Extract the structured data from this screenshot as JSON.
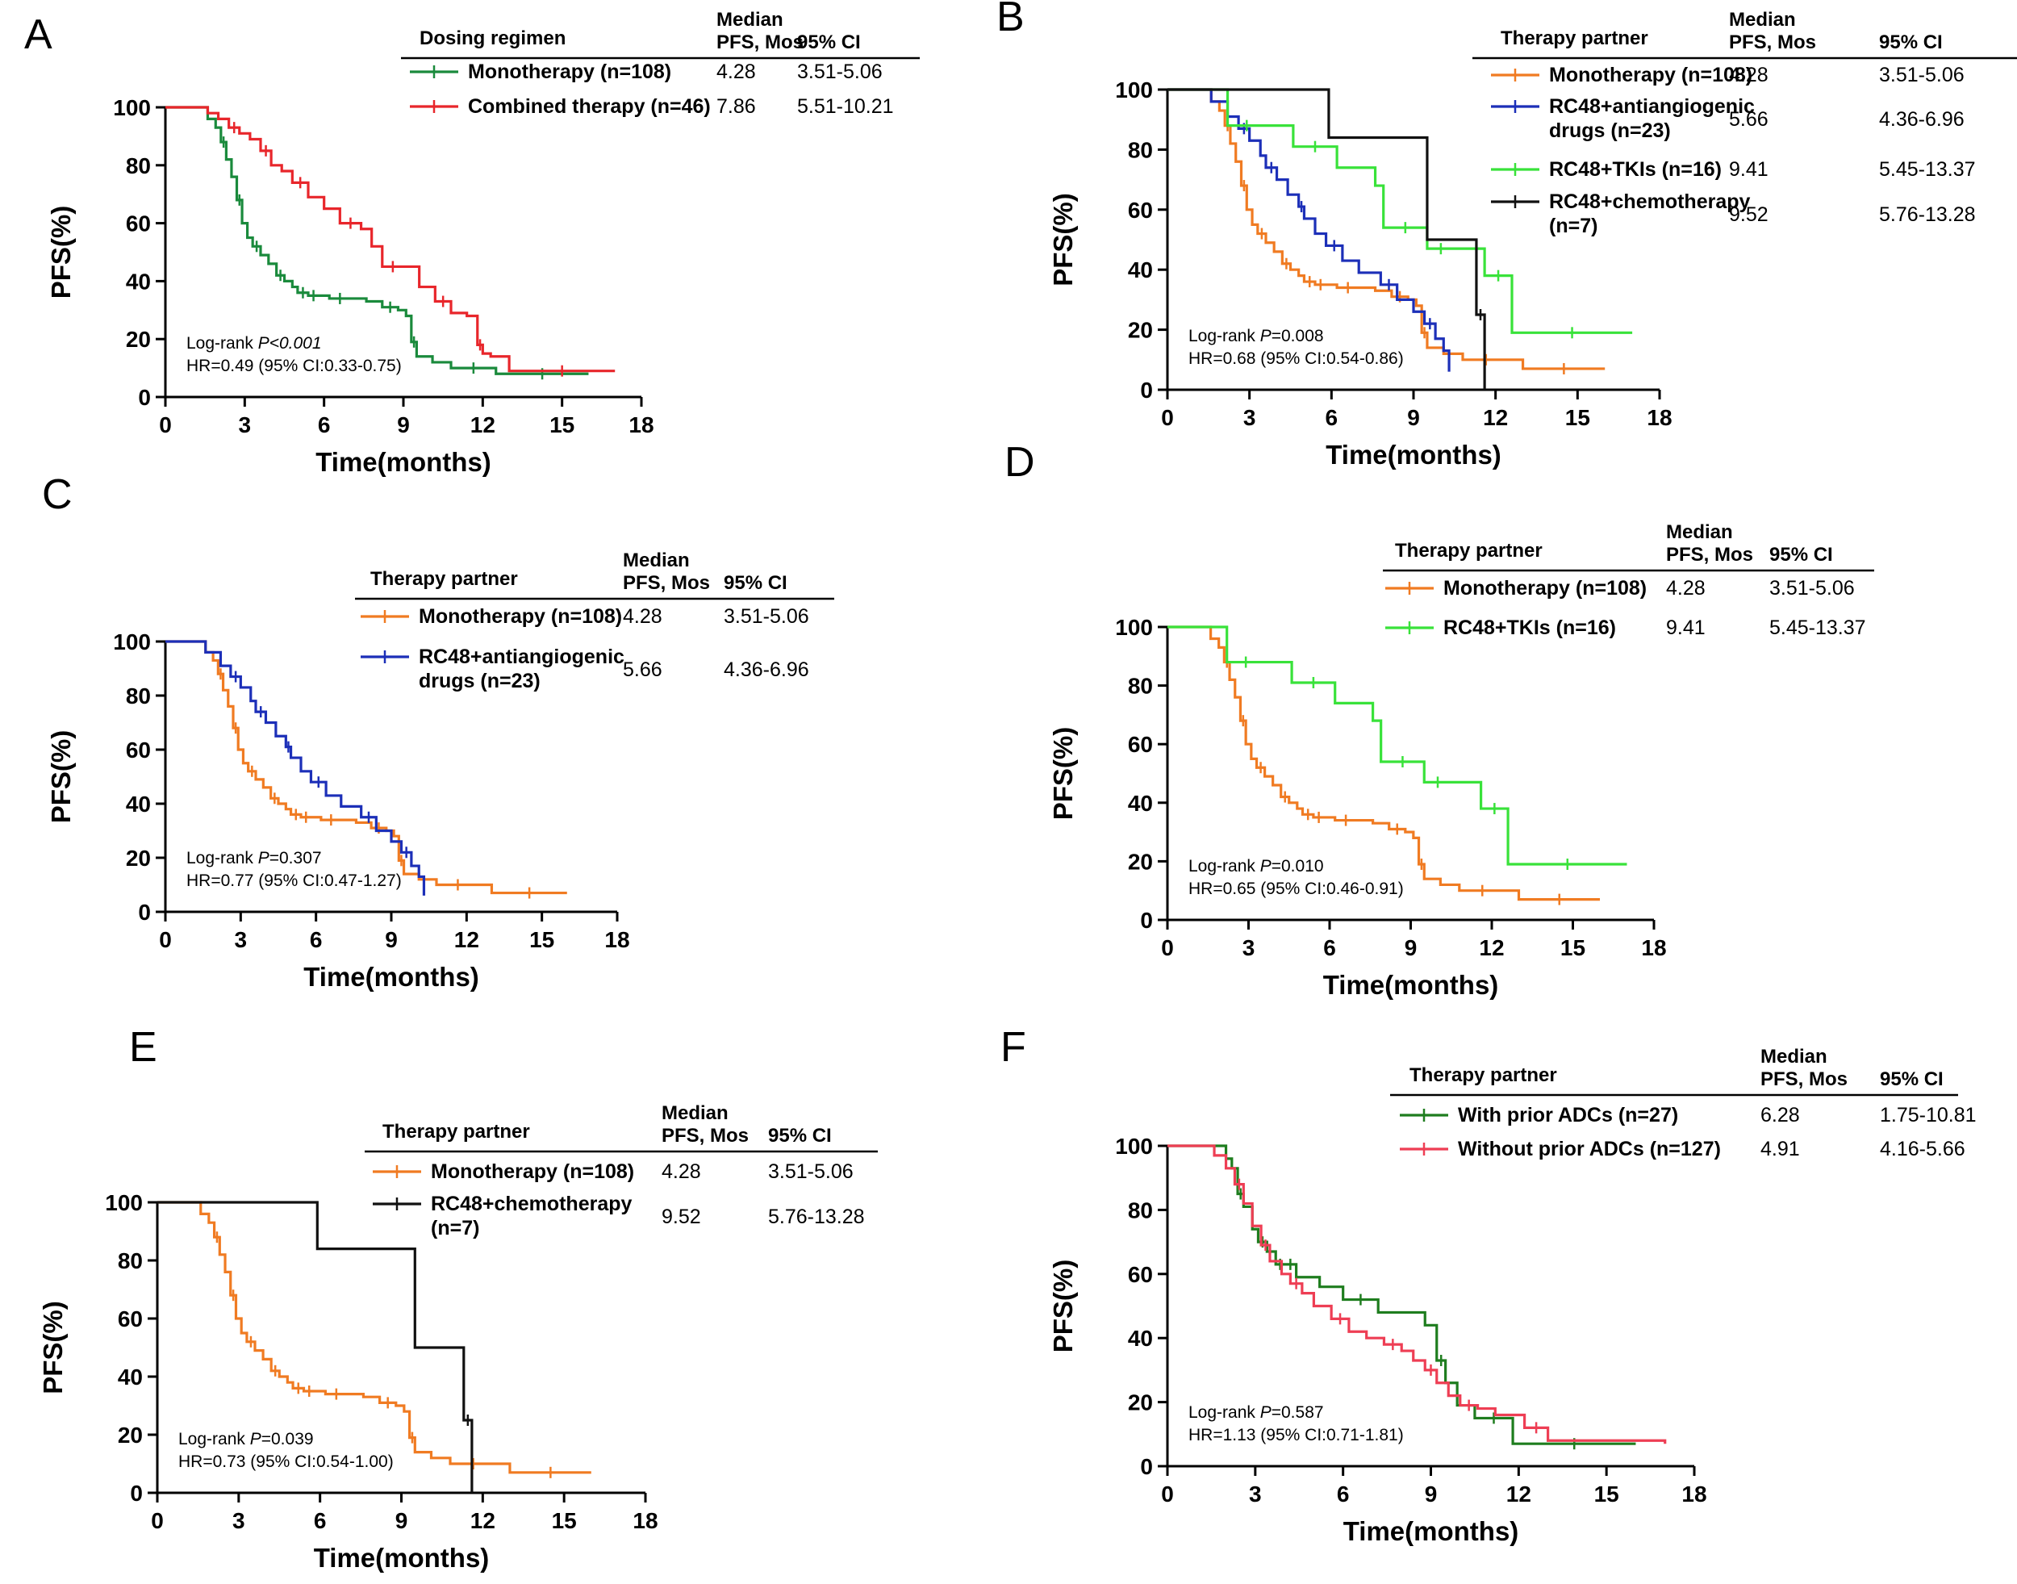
{
  "chart_data": [
    {
      "panel": "A",
      "type": "line",
      "subtype": "kaplan-meier",
      "xlabel": "Time(months)",
      "ylabel": "PFS(%)",
      "xlim": [
        0,
        18
      ],
      "ylim": [
        0,
        100
      ],
      "xticks": [
        0,
        3,
        6,
        9,
        12,
        15,
        18
      ],
      "yticks": [
        0,
        20,
        40,
        60,
        80,
        100
      ],
      "legend_title": "Dosing regimen",
      "legend_col_median": [
        "Median",
        "PFS, Mos"
      ],
      "legend_col_ci": "95% CI",
      "series": [
        {
          "name": "Monotherapy (n=108)",
          "median": "4.28",
          "ci": "3.51-5.06",
          "color": "#1a8a3c",
          "x": [
            0,
            1.6,
            1.9,
            2.1,
            2.3,
            2.5,
            2.7,
            2.9,
            3.1,
            3.3,
            3.6,
            3.9,
            4.2,
            4.5,
            4.8,
            5.0,
            5.4,
            5.8,
            6.2,
            7.0,
            7.6,
            8.2,
            8.8,
            9.1,
            9.3,
            9.5,
            10.1,
            10.8,
            12.5,
            16.0
          ],
          "y": [
            100,
            96,
            93,
            88,
            82,
            76,
            68,
            60,
            55,
            52,
            49,
            46,
            42,
            40,
            38,
            36,
            35,
            35,
            34,
            34,
            33,
            31,
            30,
            28,
            19,
            14,
            12,
            10,
            8,
            8
          ]
        },
        {
          "name": "Combined therapy (n=46)",
          "median": "7.86",
          "ci": "5.51-10.21",
          "color": "#e8262b",
          "x": [
            0,
            1.6,
            2.0,
            2.4,
            2.8,
            3.2,
            3.6,
            4.0,
            4.4,
            4.8,
            5.4,
            6.0,
            6.6,
            7.4,
            7.8,
            8.2,
            9.0,
            9.6,
            10.2,
            10.8,
            11.4,
            11.8,
            12.0,
            12.3,
            13.0,
            17.0
          ],
          "y": [
            100,
            98,
            96,
            93,
            91,
            89,
            85,
            80,
            78,
            74,
            69,
            65,
            60,
            58,
            52,
            45,
            45,
            38,
            33,
            29,
            28,
            18,
            15,
            14,
            9,
            9
          ]
        }
      ],
      "annotation": {
        "logrank_prefix": "Log-rank ",
        "p_label": "P<0.001",
        "p_value": "",
        "hr": "HR=0.49 (95% CI:0.33-0.75)"
      }
    },
    {
      "panel": "B",
      "type": "line",
      "subtype": "kaplan-meier",
      "xlabel": "Time(months)",
      "ylabel": "PFS(%)",
      "xlim": [
        0,
        18
      ],
      "ylim": [
        0,
        100
      ],
      "xticks": [
        0,
        3,
        6,
        9,
        12,
        15,
        18
      ],
      "yticks": [
        0,
        20,
        40,
        60,
        80,
        100
      ],
      "legend_title": "Therapy partner",
      "legend_col_median": [
        "Median",
        "PFS, Mos"
      ],
      "legend_col_ci": "95% CI",
      "series": [
        {
          "name": "Monotherapy (n=108)",
          "median": "4.28",
          "ci": "3.51-5.06",
          "color": "#f07b22",
          "x": [
            0,
            1.6,
            1.9,
            2.1,
            2.3,
            2.5,
            2.7,
            2.9,
            3.1,
            3.3,
            3.6,
            3.9,
            4.2,
            4.5,
            4.8,
            5.0,
            5.4,
            5.8,
            6.2,
            7.0,
            7.6,
            8.2,
            8.8,
            9.1,
            9.3,
            9.5,
            10.1,
            10.8,
            12.5,
            13.0,
            16.0
          ],
          "y": [
            100,
            96,
            93,
            88,
            82,
            76,
            68,
            60,
            55,
            52,
            49,
            46,
            42,
            40,
            38,
            36,
            35,
            35,
            34,
            34,
            33,
            31,
            30,
            28,
            19,
            14,
            12,
            10,
            10,
            7,
            7
          ]
        },
        {
          "name": "RC48+antiangiogenic drugs (n=23)",
          "median": "5.66",
          "ci": "4.36-6.96",
          "color": "#1c2fb8",
          "x": [
            0,
            1.6,
            2.2,
            2.6,
            3.0,
            3.4,
            3.6,
            4.0,
            4.4,
            4.8,
            5.0,
            5.4,
            5.8,
            6.4,
            7.0,
            7.8,
            8.4,
            9.0,
            9.4,
            9.8,
            10.1,
            10.3
          ],
          "y": [
            100,
            96,
            91,
            87,
            83,
            78,
            74,
            70,
            65,
            61,
            57,
            52,
            48,
            43,
            39,
            35,
            30,
            26,
            22,
            17,
            13,
            6
          ]
        },
        {
          "name": "RC48+TKIs (n=16)",
          "median": "9.41",
          "ci": "5.45-13.37",
          "color": "#39e23a",
          "x": [
            0,
            2.2,
            3.6,
            4.6,
            6.2,
            7.6,
            7.9,
            9.5,
            10.5,
            11.6,
            12.6,
            17.0
          ],
          "y": [
            100,
            88,
            88,
            81,
            74,
            68,
            54,
            47,
            47,
            38,
            19,
            19
          ]
        },
        {
          "name": "RC48+chemotherapy (n=7)",
          "median": "9.52",
          "ci": "5.76-13.28",
          "color": "#111111",
          "x": [
            0,
            5.9,
            9.5,
            11.3,
            11.6
          ],
          "y": [
            100,
            84,
            50,
            25,
            0
          ]
        }
      ],
      "annotation": {
        "logrank_prefix": "Log-rank ",
        "p_label": "P",
        "p_value": "=0.008",
        "hr": "HR=0.68 (95% CI:0.54-0.86)"
      }
    },
    {
      "panel": "C",
      "type": "line",
      "subtype": "kaplan-meier",
      "xlabel": "Time(months)",
      "ylabel": "PFS(%)",
      "xlim": [
        0,
        18
      ],
      "ylim": [
        0,
        100
      ],
      "xticks": [
        0,
        3,
        6,
        9,
        12,
        15,
        18
      ],
      "yticks": [
        0,
        20,
        40,
        60,
        80,
        100
      ],
      "legend_title": "Therapy partner",
      "legend_col_median": [
        "Median",
        "PFS, Mos"
      ],
      "legend_col_ci": "95% CI",
      "series": [
        {
          "name": "Monotherapy (n=108)",
          "median": "4.28",
          "ci": "3.51-5.06",
          "color": "#f07b22",
          "x": [
            0,
            1.6,
            1.9,
            2.1,
            2.3,
            2.5,
            2.7,
            2.9,
            3.1,
            3.3,
            3.6,
            3.9,
            4.2,
            4.5,
            4.8,
            5.0,
            5.4,
            5.8,
            6.2,
            7.0,
            7.6,
            8.2,
            8.8,
            9.1,
            9.3,
            9.5,
            10.1,
            10.8,
            12.5,
            13.0,
            16.0
          ],
          "y": [
            100,
            96,
            93,
            88,
            82,
            76,
            68,
            60,
            55,
            52,
            49,
            46,
            42,
            40,
            38,
            36,
            35,
            35,
            34,
            34,
            33,
            31,
            30,
            28,
            19,
            14,
            12,
            10,
            10,
            7,
            7
          ]
        },
        {
          "name": "RC48+antiangiogenic drugs (n=23)",
          "median": "5.66",
          "ci": "4.36-6.96",
          "color": "#1c2fb8",
          "x": [
            0,
            1.6,
            2.2,
            2.6,
            3.0,
            3.4,
            3.6,
            4.0,
            4.4,
            4.8,
            5.0,
            5.4,
            5.8,
            6.4,
            7.0,
            7.8,
            8.4,
            9.0,
            9.4,
            9.8,
            10.1,
            10.3
          ],
          "y": [
            100,
            96,
            91,
            87,
            83,
            78,
            74,
            70,
            65,
            61,
            57,
            52,
            48,
            43,
            39,
            35,
            30,
            26,
            22,
            17,
            13,
            6
          ]
        }
      ],
      "annotation": {
        "logrank_prefix": "Log-rank ",
        "p_label": "P",
        "p_value": "=0.307",
        "hr": "HR=0.77 (95% CI:0.47-1.27)"
      }
    },
    {
      "panel": "D",
      "type": "line",
      "subtype": "kaplan-meier",
      "xlabel": "Time(months)",
      "ylabel": "PFS(%)",
      "xlim": [
        0,
        18
      ],
      "ylim": [
        0,
        100
      ],
      "xticks": [
        0,
        3,
        6,
        9,
        12,
        15,
        18
      ],
      "yticks": [
        0,
        20,
        40,
        60,
        80,
        100
      ],
      "legend_title": "Therapy partner",
      "legend_col_median": [
        "Median",
        "PFS, Mos"
      ],
      "legend_col_ci": "95% CI",
      "series": [
        {
          "name": "Monotherapy (n=108)",
          "median": "4.28",
          "ci": "3.51-5.06",
          "color": "#f07b22",
          "x": [
            0,
            1.6,
            1.9,
            2.1,
            2.3,
            2.5,
            2.7,
            2.9,
            3.1,
            3.3,
            3.6,
            3.9,
            4.2,
            4.5,
            4.8,
            5.0,
            5.4,
            5.8,
            6.2,
            7.0,
            7.6,
            8.2,
            8.8,
            9.1,
            9.3,
            9.5,
            10.1,
            10.8,
            12.5,
            13.0,
            16.0
          ],
          "y": [
            100,
            96,
            93,
            88,
            82,
            76,
            68,
            60,
            55,
            52,
            49,
            46,
            42,
            40,
            38,
            36,
            35,
            35,
            34,
            34,
            33,
            31,
            30,
            28,
            19,
            14,
            12,
            10,
            10,
            7,
            7
          ]
        },
        {
          "name": "RC48+TKIs (n=16)",
          "median": "9.41",
          "ci": "5.45-13.37",
          "color": "#39e23a",
          "x": [
            0,
            2.2,
            3.6,
            4.6,
            6.2,
            7.6,
            7.9,
            9.5,
            10.5,
            11.6,
            12.6,
            17.0
          ],
          "y": [
            100,
            88,
            88,
            81,
            74,
            68,
            54,
            47,
            47,
            38,
            19,
            19
          ]
        }
      ],
      "annotation": {
        "logrank_prefix": "Log-rank ",
        "p_label": "P",
        "p_value": "=0.010",
        "hr": "HR=0.65 (95% CI:0.46-0.91)"
      }
    },
    {
      "panel": "E",
      "type": "line",
      "subtype": "kaplan-meier",
      "xlabel": "Time(months)",
      "ylabel": "PFS(%)",
      "xlim": [
        0,
        18
      ],
      "ylim": [
        0,
        100
      ],
      "xticks": [
        0,
        3,
        6,
        9,
        12,
        15,
        18
      ],
      "yticks": [
        0,
        20,
        40,
        60,
        80,
        100
      ],
      "legend_title": "Therapy partner",
      "legend_col_median": [
        "Median",
        "PFS, Mos"
      ],
      "legend_col_ci": "95% CI",
      "series": [
        {
          "name": "Monotherapy (n=108)",
          "median": "4.28",
          "ci": "3.51-5.06",
          "color": "#f07b22",
          "x": [
            0,
            1.6,
            1.9,
            2.1,
            2.3,
            2.5,
            2.7,
            2.9,
            3.1,
            3.3,
            3.6,
            3.9,
            4.2,
            4.5,
            4.8,
            5.0,
            5.4,
            5.8,
            6.2,
            7.0,
            7.6,
            8.2,
            8.8,
            9.1,
            9.3,
            9.5,
            10.1,
            10.8,
            12.5,
            13.0,
            16.0
          ],
          "y": [
            100,
            96,
            93,
            88,
            82,
            76,
            68,
            60,
            55,
            52,
            49,
            46,
            42,
            40,
            38,
            36,
            35,
            35,
            34,
            34,
            33,
            31,
            30,
            28,
            19,
            14,
            12,
            10,
            10,
            7,
            7
          ]
        },
        {
          "name": "RC48+chemotherapy (n=7)",
          "median": "9.52",
          "ci": "5.76-13.28",
          "color": "#111111",
          "x": [
            0,
            5.9,
            9.5,
            11.3,
            11.6
          ],
          "y": [
            100,
            84,
            50,
            25,
            0
          ]
        }
      ],
      "annotation": {
        "logrank_prefix": "Log-rank ",
        "p_label": "P",
        "p_value": "=0.039",
        "hr": "HR=0.73 (95% CI:0.54-1.00)"
      }
    },
    {
      "panel": "F",
      "type": "line",
      "subtype": "kaplan-meier",
      "xlabel": "Time(months)",
      "ylabel": "PFS(%)",
      "xlim": [
        0,
        18
      ],
      "ylim": [
        0,
        100
      ],
      "xticks": [
        0,
        3,
        6,
        9,
        12,
        15,
        18
      ],
      "yticks": [
        0,
        20,
        40,
        60,
        80,
        100
      ],
      "legend_title": "Therapy partner",
      "legend_col_median": [
        "Median",
        "PFS, Mos"
      ],
      "legend_col_ci": "95% CI",
      "series": [
        {
          "name": "With prior ADCs (n=27)",
          "median": "6.28",
          "ci": "1.75-10.81",
          "color": "#1e7d1e",
          "x": [
            0,
            2.0,
            2.2,
            2.4,
            2.6,
            2.9,
            3.1,
            3.4,
            3.7,
            4.0,
            4.4,
            5.2,
            6.0,
            7.2,
            8.8,
            9.2,
            9.5,
            9.9,
            10.5,
            11.8,
            16.0
          ],
          "y": [
            100,
            96,
            93,
            85,
            81,
            74,
            70,
            67,
            63,
            63,
            59,
            56,
            52,
            48,
            44,
            33,
            26,
            19,
            15,
            7,
            7
          ]
        },
        {
          "name": "Without prior ADCs (n=127)",
          "median": "4.91",
          "ci": "4.16-5.66",
          "color": "#ee3e54",
          "x": [
            0,
            1.6,
            2.0,
            2.3,
            2.6,
            2.9,
            3.2,
            3.5,
            3.9,
            4.2,
            4.6,
            5.0,
            5.6,
            6.2,
            6.8,
            7.4,
            8.0,
            8.4,
            8.8,
            9.2,
            9.6,
            10.0,
            10.6,
            11.2,
            12.2,
            13.0,
            17.0
          ],
          "y": [
            100,
            97,
            93,
            88,
            82,
            75,
            69,
            64,
            60,
            57,
            54,
            50,
            46,
            42,
            40,
            38,
            36,
            33,
            30,
            26,
            22,
            19,
            18,
            16,
            12,
            8,
            7
          ]
        }
      ],
      "annotation": {
        "logrank_prefix": "Log-rank ",
        "p_label": "P",
        "p_value": "=0.587",
        "hr": "HR=1.13 (95% CI:0.71-1.81)"
      }
    }
  ]
}
